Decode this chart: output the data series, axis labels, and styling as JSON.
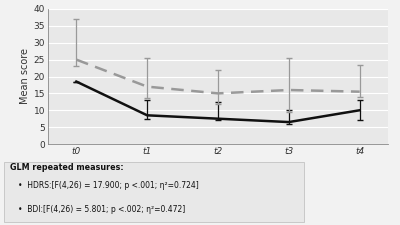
{
  "x_labels": [
    "t0",
    "t1",
    "t2",
    "t3",
    "t4"
  ],
  "hdrs_means": [
    18.5,
    8.5,
    7.5,
    6.5,
    10.0
  ],
  "hdrs_upper": [
    0.0,
    4.5,
    5.0,
    3.5,
    3.0
  ],
  "hdrs_lower": [
    0.0,
    1.0,
    0.5,
    0.5,
    3.0
  ],
  "bdi_means": [
    25.0,
    17.0,
    15.0,
    16.0,
    15.5
  ],
  "bdi_upper": [
    12.0,
    8.5,
    7.0,
    9.5,
    8.0
  ],
  "bdi_lower": [
    2.0,
    3.5,
    3.0,
    6.5,
    1.5
  ],
  "ylim": [
    0,
    40
  ],
  "yticks": [
    0,
    5,
    10,
    15,
    20,
    25,
    30,
    35,
    40
  ],
  "ylabel": "Mean score",
  "hdrs_color": "#111111",
  "bdi_color": "#999999",
  "fig_bg": "#f2f2f2",
  "plot_bg": "#e8e8e8",
  "annotation_title": "GLM repeated measures:",
  "annotation_line1": "HDRS:[F(4,26) = 17.900; p <.001; η²=0.724]",
  "annotation_line2": "BDI:[F(4,26) = 5.801; p <.002; η²=0.472]"
}
